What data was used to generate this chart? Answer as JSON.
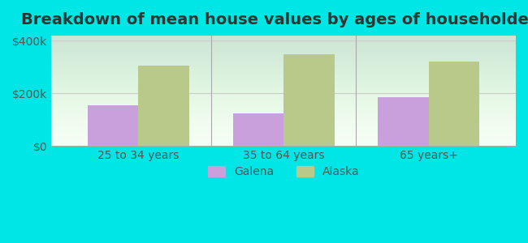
{
  "title": "Breakdown of mean house values by ages of householders",
  "categories": [
    "25 to 34 years",
    "35 to 64 years",
    "65 years+"
  ],
  "galena_values": [
    155000,
    125000,
    185000
  ],
  "alaska_values": [
    305000,
    350000,
    320000
  ],
  "galena_color": "#c9a0dc",
  "alaska_color": "#b8c98a",
  "background_color": "#00e5e5",
  "plot_bg_gradient_top": "#e8f5e0",
  "plot_bg_gradient_bottom": "#f5fff5",
  "ylim": [
    0,
    420000
  ],
  "yticks": [
    0,
    200000,
    400000
  ],
  "ytick_labels": [
    "$0",
    "$200k",
    "$400k"
  ],
  "bar_width": 0.35,
  "legend_labels": [
    "Galena",
    "Alaska"
  ],
  "title_fontsize": 14,
  "tick_fontsize": 10,
  "legend_fontsize": 10
}
